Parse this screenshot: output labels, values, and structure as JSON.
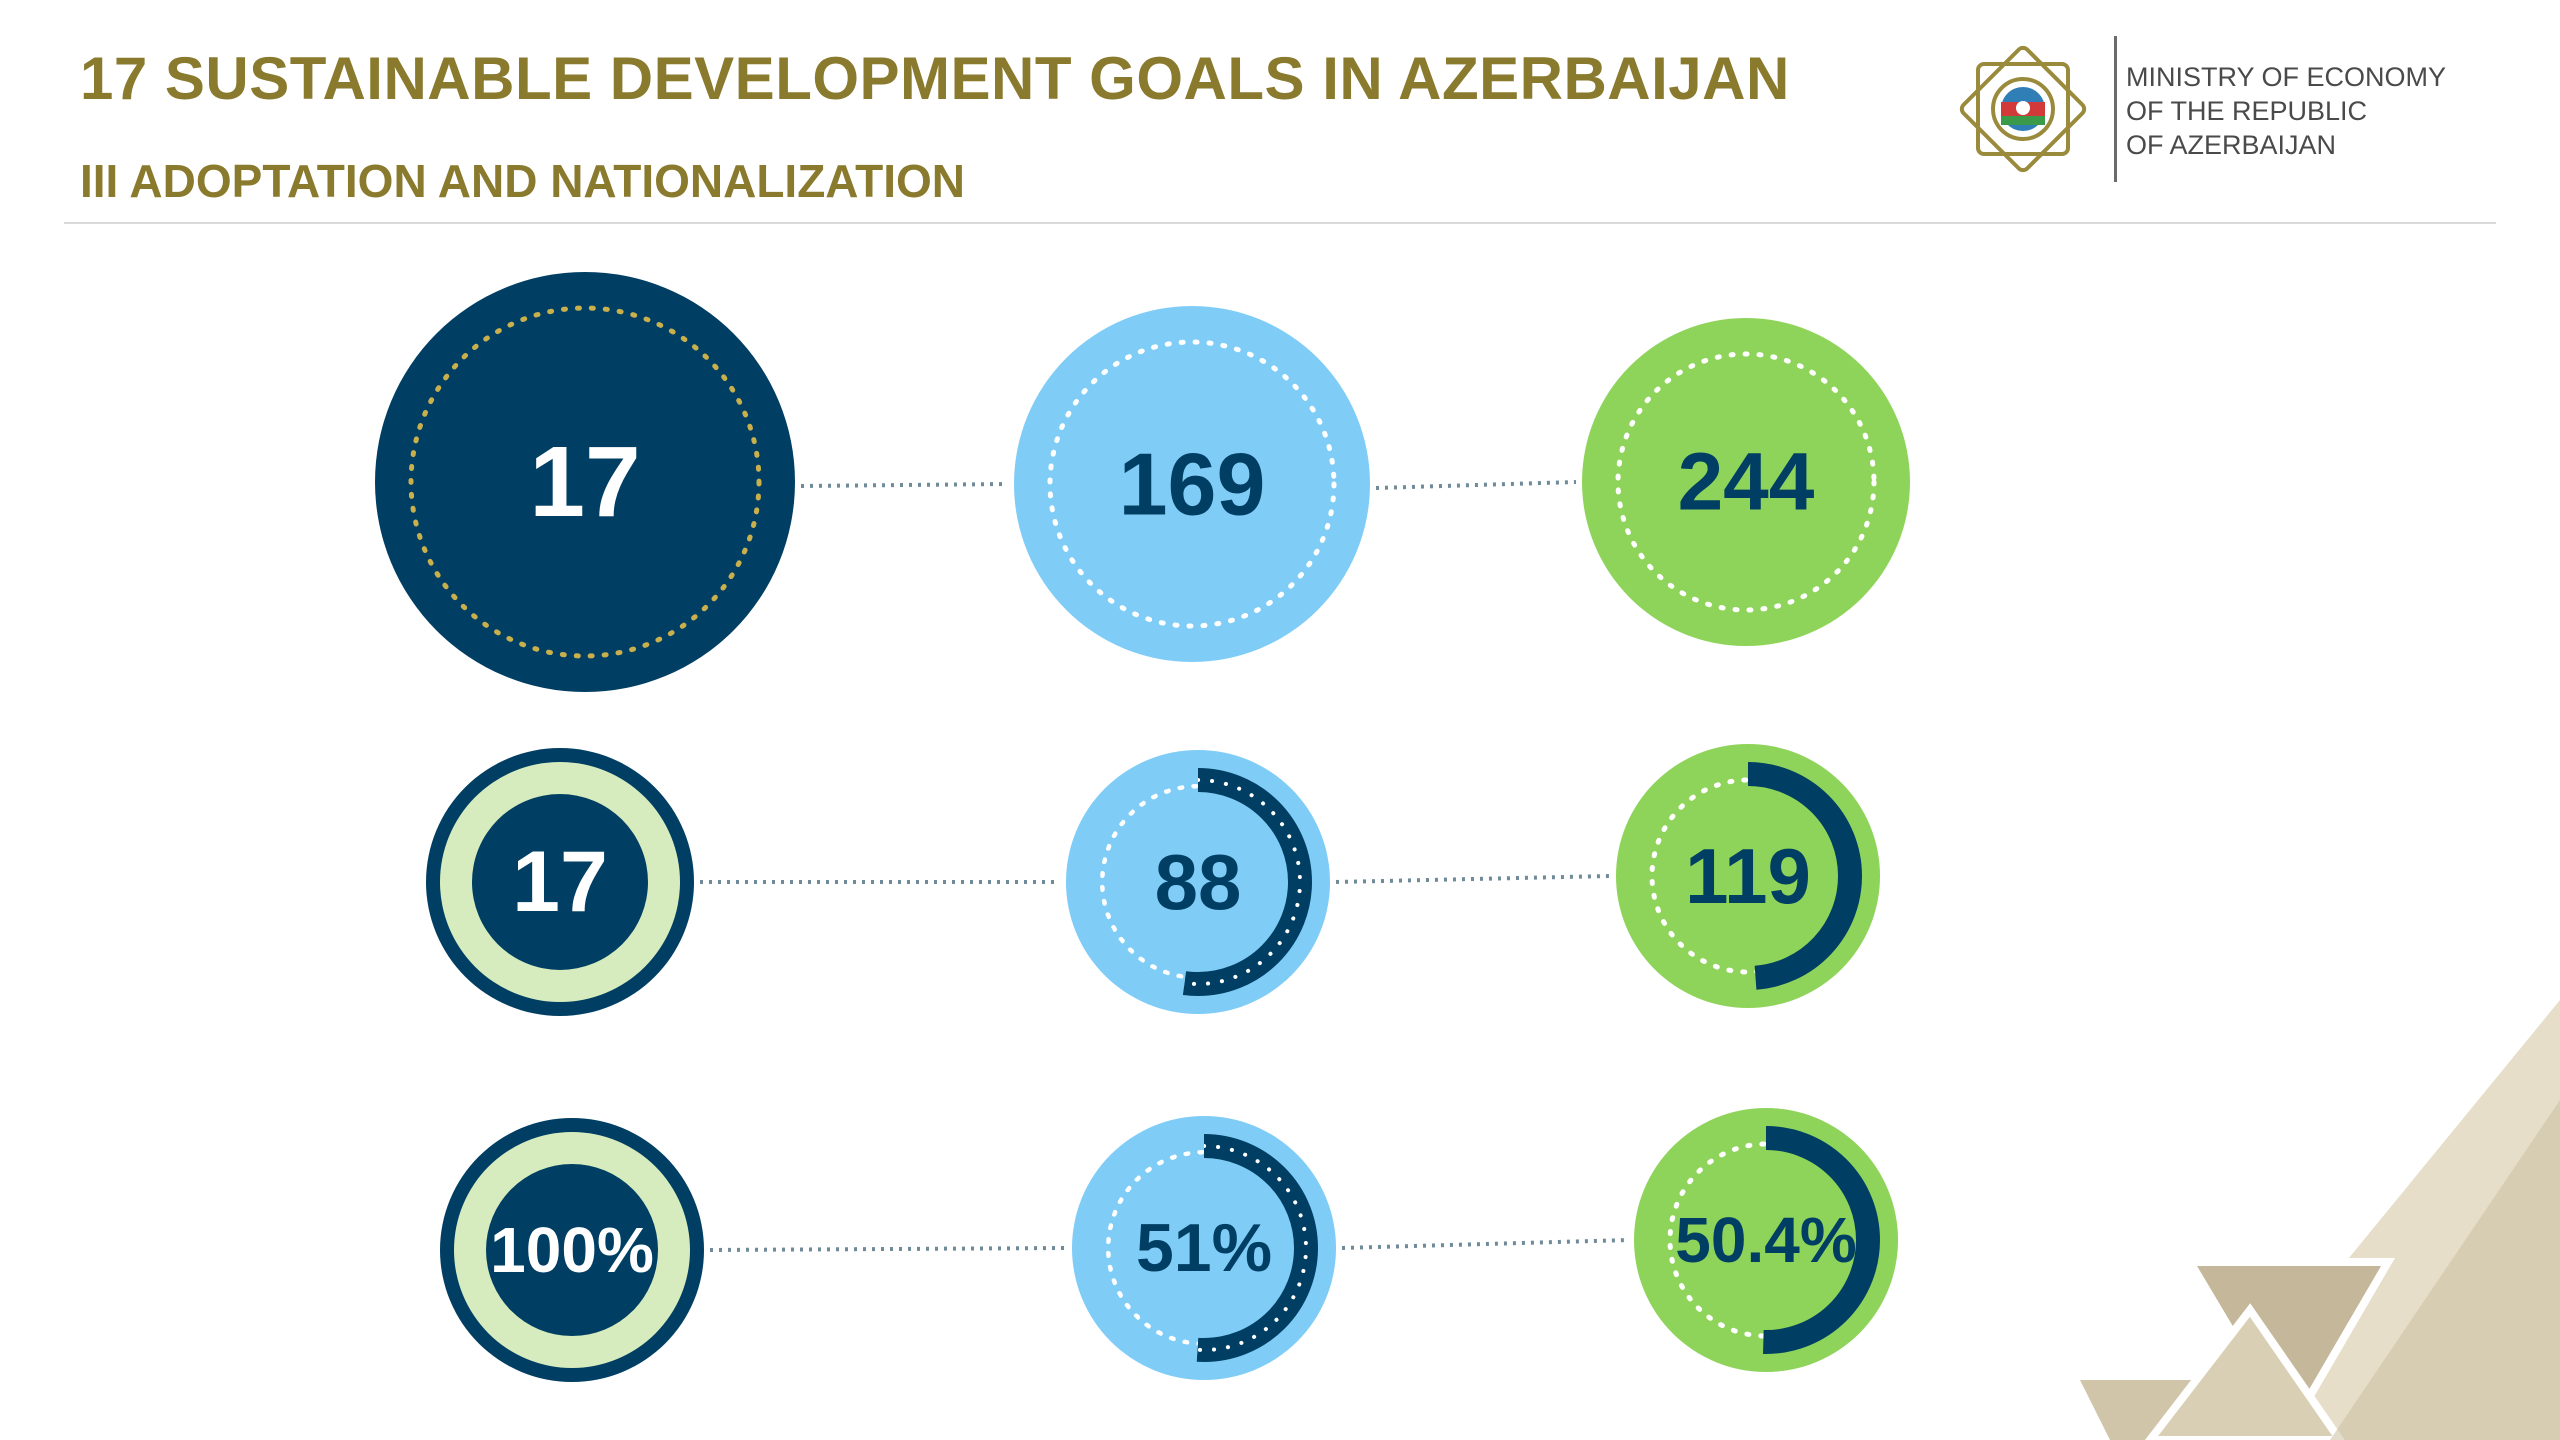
{
  "header": {
    "title": "17 SUSTAINABLE DEVELOPMENT GOALS IN AZERBAIJAN",
    "subtitle": "III ADOPTATION AND NATIONALIZATION"
  },
  "ministry": {
    "line1": "MINISTRY OF ECONOMY",
    "line2": "OF THE REPUBLIC",
    "line3": "OF AZERBAIJAN"
  },
  "rows": [
    {
      "items": [
        {
          "value": "17",
          "style": "navy"
        },
        {
          "value": "169",
          "style": "blue"
        },
        {
          "value": "244",
          "style": "green"
        }
      ]
    },
    {
      "items": [
        {
          "value": "17",
          "style": "navy-ring",
          "progress": 1.0
        },
        {
          "value": "88",
          "style": "blue",
          "progress": 0.521
        },
        {
          "value": "119",
          "style": "green",
          "progress": 0.488
        }
      ]
    },
    {
      "items": [
        {
          "value": "100%",
          "style": "navy-ring",
          "progress": 1.0
        },
        {
          "value": "51%",
          "style": "blue",
          "progress": 0.51
        },
        {
          "value": "50.4%",
          "style": "green",
          "progress": 0.504
        }
      ]
    }
  ],
  "colors": {
    "navy": "#003f63",
    "blue": "#7fcdf7",
    "green": "#8fd45a",
    "pale_green": "#d6ecbe",
    "gold": "#8a7a2e",
    "dotted_gold": "#c9b04c",
    "connector": "#6f8a99",
    "deco_tan": "#cbbf9e",
    "deco_light": "#e6dec9"
  }
}
